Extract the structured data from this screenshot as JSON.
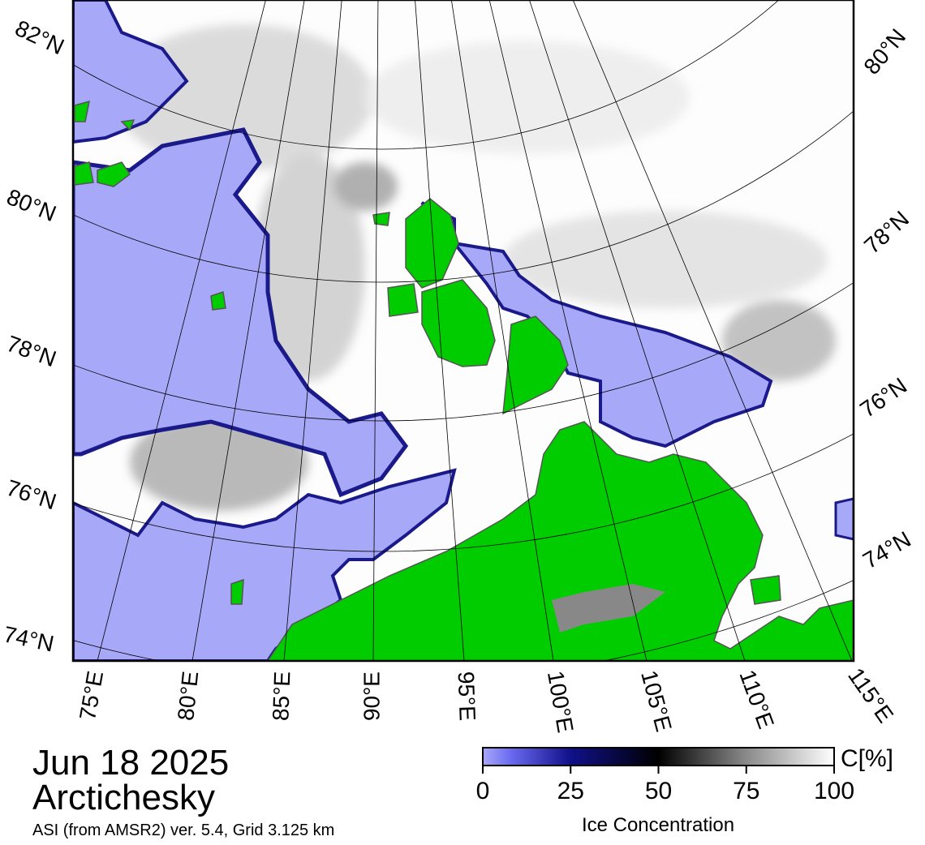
{
  "map": {
    "lat_labels_left": [
      "82°N",
      "80°N",
      "78°N",
      "76°N",
      "74°N"
    ],
    "lat_labels_right": [
      "80°N",
      "78°N",
      "76°N",
      "74°N"
    ],
    "lon_labels": [
      "75°E",
      "80°E",
      "85°E",
      "90°E",
      "95°E",
      "100°E",
      "105°E",
      "110°E",
      "115°E"
    ]
  },
  "caption": {
    "date": "Jun 18 2025",
    "region": "Arctichesky",
    "source": "ASI (from AMSR2) ver. 5.4,  Grid 3.125 km"
  },
  "colorbar": {
    "title": "Ice Concentration",
    "unit": "C[%]",
    "range": [
      0,
      100
    ],
    "ticks": [
      0,
      25,
      50,
      75,
      100
    ]
  }
}
